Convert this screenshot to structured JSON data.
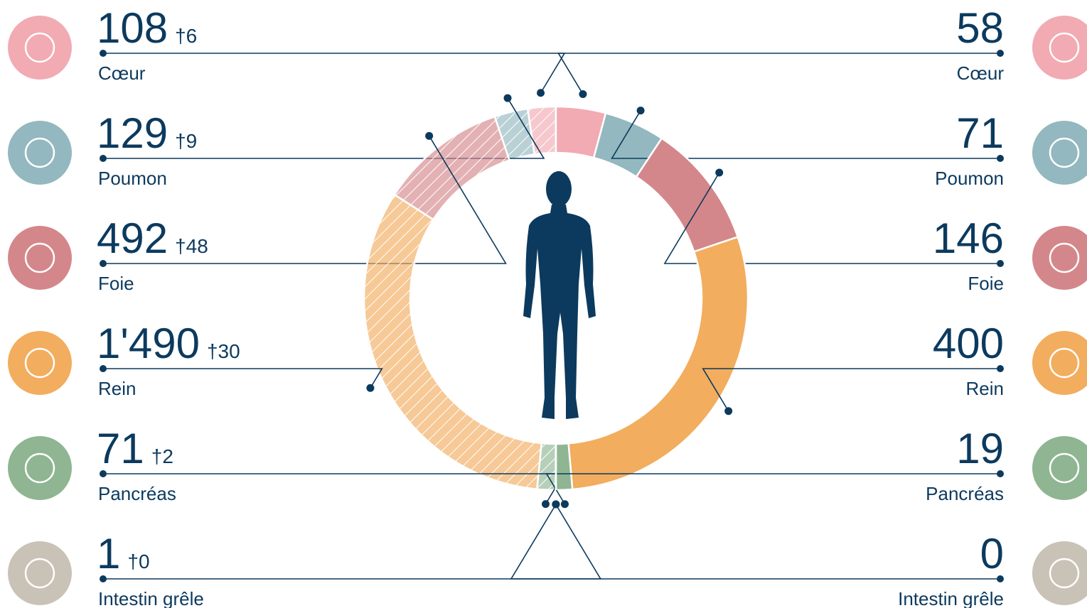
{
  "chart_data": {
    "type": "donut",
    "categories": [
      "Cœur",
      "Poumon",
      "Foie",
      "Rein",
      "Pancréas",
      "Intestin grêle"
    ],
    "colors": [
      "#f2aab3",
      "#93b8bf",
      "#d4878a",
      "#f2ad5e",
      "#8fb592",
      "#c9c2b6"
    ],
    "series": [
      {
        "side": "left",
        "hatched": true,
        "values": [
          108,
          129,
          492,
          1490,
          71,
          1
        ],
        "value_labels": [
          "108",
          "129",
          "492",
          "1'490",
          "71",
          "1"
        ],
        "death_labels": [
          "†6",
          "†9",
          "†48",
          "†30",
          "†2",
          "†0"
        ]
      },
      {
        "side": "right",
        "hatched": false,
        "values": [
          58,
          71,
          146,
          400,
          19,
          0
        ]
      }
    ]
  }
}
